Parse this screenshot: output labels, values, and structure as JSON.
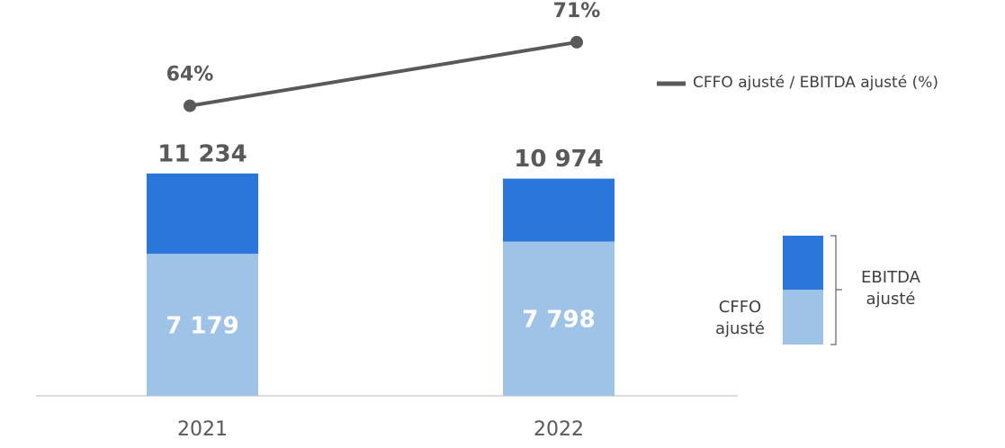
{
  "chart_data": {
    "type": "bar",
    "categories": [
      "2021",
      "2022"
    ],
    "series": [
      {
        "name": "EBITDA ajusté",
        "type": "bar",
        "color": "#2b76db",
        "values": [
          11234,
          10974
        ],
        "value_labels": [
          "11 234",
          "10 974"
        ]
      },
      {
        "name": "CFFO ajusté",
        "type": "bar",
        "color": "#9fc3e7",
        "values": [
          7179,
          7798
        ],
        "value_labels": [
          "7 179",
          "7 798"
        ]
      },
      {
        "name": "CFFO ajusté / EBITDA ajusté (%)",
        "type": "line",
        "axis": "y2",
        "color": "#595959",
        "values": [
          64,
          71
        ],
        "value_labels": [
          "64%",
          "71%"
        ]
      }
    ],
    "ylim": [
      0,
      20000
    ],
    "y2lim": [
      50,
      80
    ]
  }
}
